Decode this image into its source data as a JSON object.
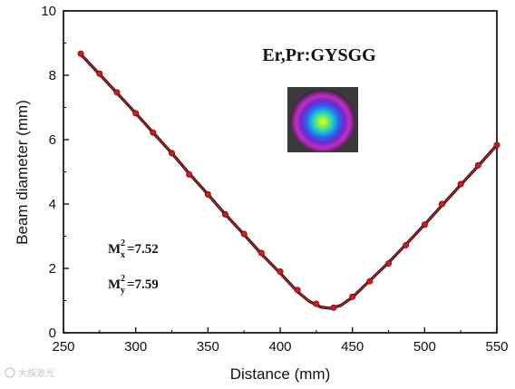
{
  "chart_data": {
    "type": "scatter",
    "title": "Er,Pr:GYSGG",
    "xlabel": "Distance (mm)",
    "ylabel": "Beam diameter (mm)",
    "xlim": [
      250,
      550
    ],
    "ylim": [
      0,
      10
    ],
    "xticks": [
      "250",
      "300",
      "350",
      "400",
      "450",
      "500",
      "550"
    ],
    "yticks": [
      "0",
      "2",
      "4",
      "6",
      "8",
      "10"
    ],
    "grid": false,
    "series": [
      {
        "kind": "points",
        "color": "#d11a1a",
        "x": [
          262,
          275,
          287,
          300,
          312,
          325,
          337,
          350,
          362,
          375,
          387,
          400,
          412,
          425,
          437,
          450,
          462,
          475,
          487,
          500,
          512,
          525,
          537,
          550
        ],
        "y": [
          8.67,
          8.05,
          7.47,
          6.82,
          6.22,
          5.58,
          4.92,
          4.3,
          3.68,
          3.07,
          2.48,
          1.9,
          1.33,
          0.9,
          0.78,
          1.12,
          1.6,
          2.15,
          2.72,
          3.36,
          4.0,
          4.62,
          5.2,
          5.83
        ]
      },
      {
        "kind": "fit",
        "color": "#d11a1a",
        "outline": "#111111",
        "x": [
          262,
          275,
          287,
          300,
          312,
          325,
          337,
          350,
          362,
          375,
          387,
          400,
          412,
          420,
          428,
          435,
          442,
          450,
          462,
          475,
          487,
          500,
          512,
          525,
          537,
          550
        ],
        "y": [
          8.65,
          8.03,
          7.45,
          6.82,
          6.22,
          5.58,
          4.95,
          4.3,
          3.68,
          3.05,
          2.45,
          1.85,
          1.28,
          0.98,
          0.8,
          0.76,
          0.85,
          1.1,
          1.62,
          2.18,
          2.74,
          3.36,
          3.96,
          4.6,
          5.18,
          5.83
        ]
      }
    ],
    "annotations": {
      "mx_base": "M",
      "mx_sup": "2",
      "mx_sub": "x",
      "mx_value": "=7.52",
      "my_base": "M",
      "my_sup": "2",
      "my_sub": "y",
      "my_value": "=7.59"
    },
    "inset_image": "beam-profile"
  },
  "watermark": "大族激光"
}
